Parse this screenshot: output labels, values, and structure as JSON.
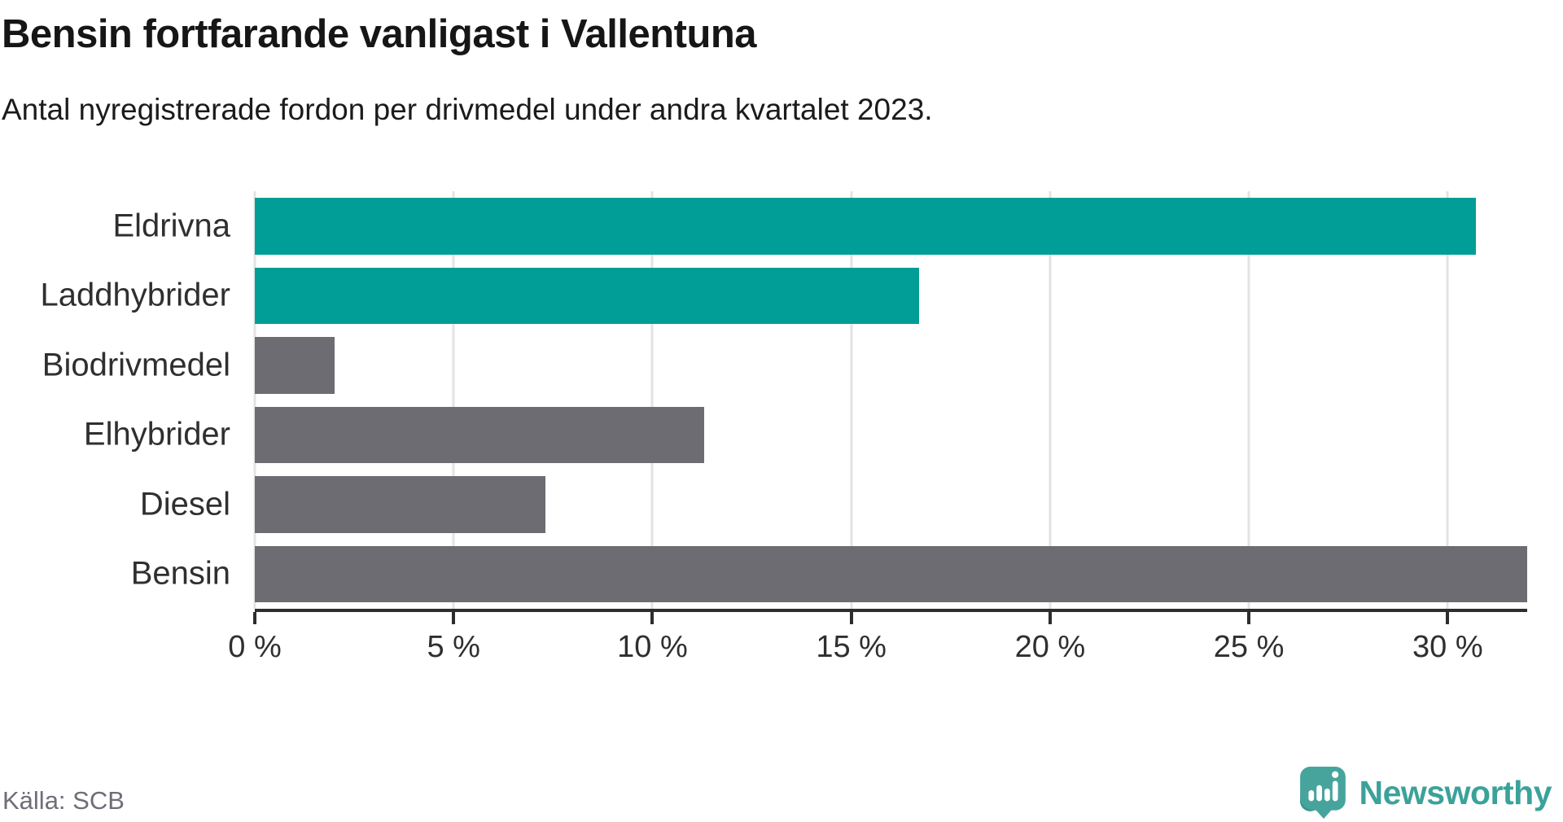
{
  "header": {
    "title": "Bensin fortfarande vanligast i Vallentuna",
    "subtitle": "Antal nyregistrerade fordon per drivmedel under andra kvartalet 2023."
  },
  "footer": {
    "source": "Källa: SCB",
    "brand": "Newsworthy"
  },
  "colors": {
    "highlight_teal": "#009e97",
    "bar_gray": "#6c6c72",
    "axis": "#2d2d2d",
    "gridline": "#e3e3e3",
    "text_dark": "#2f2f2f",
    "source_gray": "#6e6e78",
    "logo_teal": "#47a49c",
    "logo_teal_dark": "#37948c"
  },
  "chart_data": {
    "type": "bar",
    "orientation": "horizontal",
    "title": "Bensin fortfarande vanligast i Vallentuna",
    "subtitle": "Antal nyregistrerade fordon per drivmedel under andra kvartalet 2023.",
    "categories": [
      "Eldrivna",
      "Laddhybrider",
      "Biodrivmedel",
      "Elhybrider",
      "Diesel",
      "Bensin"
    ],
    "values": [
      30.7,
      16.7,
      2.0,
      11.3,
      7.3,
      32.0
    ],
    "unit": "%",
    "xlabel": "",
    "ylabel": "",
    "xlim": [
      0,
      32
    ],
    "x_ticks": [
      0,
      5,
      10,
      15,
      20,
      25,
      30
    ],
    "x_tick_labels": [
      "0 %",
      "5 %",
      "10 %",
      "15 %",
      "20 %",
      "25 %",
      "30 %"
    ],
    "bar_colors": [
      "#009e97",
      "#009e97",
      "#6c6c72",
      "#6c6c72",
      "#6c6c72",
      "#6c6c72"
    ],
    "highlight_color": "#009e97",
    "default_color": "#6c6c72",
    "grid": true,
    "legend": "none"
  }
}
